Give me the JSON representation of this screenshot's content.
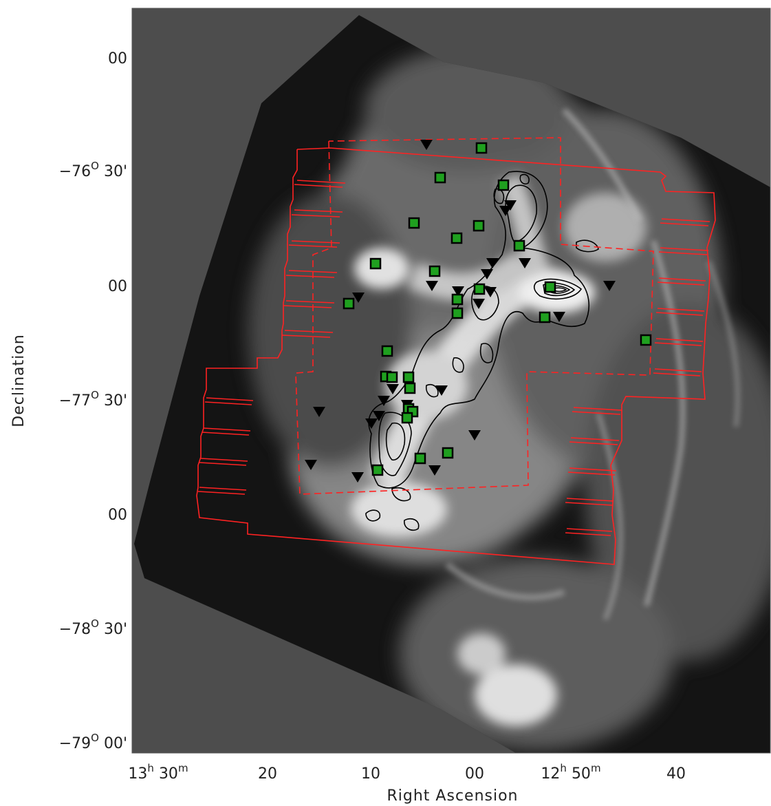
{
  "axes": {
    "xlabel": "Right Ascension",
    "ylabel": "Declination",
    "x_ticks": [
      {
        "h": "13",
        "m": "30",
        "hsup": "h",
        "msup": "m"
      },
      {
        "v": "20"
      },
      {
        "v": "10"
      },
      {
        "v": "00"
      },
      {
        "h": "12",
        "m": "50",
        "hsup": "h",
        "msup": "m"
      },
      {
        "v": "40"
      }
    ],
    "y_ticks": [
      {
        "v": "00"
      },
      {
        "deg": "−76",
        "min": "30'",
        "sup": "O"
      },
      {
        "v": "00"
      },
      {
        "deg": "−77",
        "min": "30'",
        "sup": "O"
      },
      {
        "v": "00"
      },
      {
        "deg": "−78",
        "min": "30'",
        "sup": "O"
      },
      {
        "deg": "−79",
        "min": "00'",
        "sup": "O"
      }
    ]
  },
  "colors": {
    "background_sky": "#4d4d4d",
    "survey_outline": "#ff2222",
    "square_marker": "#1fa01f",
    "triangle_marker": "#000000",
    "contour": "#000000"
  }
}
